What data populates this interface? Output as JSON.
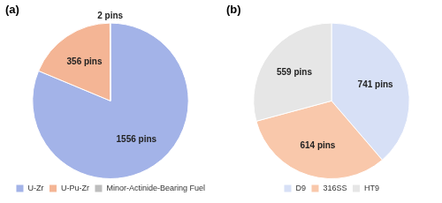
{
  "chart_data": [
    {
      "type": "pie",
      "title": "(a)",
      "categories": [
        "U-Zr",
        "U-Pu-Zr",
        "Minor-Actinide-Bearing Fuel"
      ],
      "values": [
        1556,
        356,
        2
      ],
      "value_labels": [
        "1556 pins",
        "356 pins",
        "2 pins"
      ],
      "colors": [
        "#a3b3e8",
        "#f4b595",
        "#bdbdbd"
      ],
      "data_labels": true,
      "legend": "bottom"
    },
    {
      "type": "pie",
      "title": "(b)",
      "categories": [
        "D9",
        "316SS",
        "HT9"
      ],
      "values": [
        741,
        614,
        559
      ],
      "value_labels": [
        "741 pins",
        "614 pins",
        "559 pins"
      ],
      "colors": [
        "#d7e0f6",
        "#f9c8ab",
        "#e6e6e6"
      ],
      "data_labels": true,
      "legend": "bottom"
    }
  ]
}
